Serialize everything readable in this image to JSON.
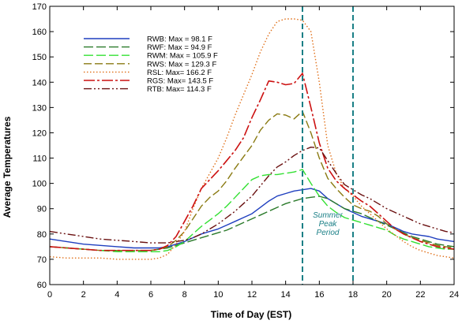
{
  "chart_data": {
    "type": "line",
    "xlabel": "Time of Day (EST)",
    "ylabel": "Average Temperatures",
    "xlim": [
      0,
      24
    ],
    "ylim": [
      60,
      170
    ],
    "xticks": [
      0,
      2,
      4,
      6,
      8,
      10,
      12,
      14,
      16,
      18,
      20,
      22,
      24
    ],
    "xtick_labels": [
      "0",
      "2",
      "4",
      "6",
      "8",
      "10",
      "12",
      "14",
      "16",
      "18",
      "20",
      "22",
      "24"
    ],
    "yticks": [
      60,
      70,
      80,
      90,
      100,
      110,
      120,
      130,
      140,
      150,
      160,
      170
    ],
    "ytick_labels": [
      "60",
      "70",
      "80",
      "90",
      "100",
      "110",
      "120",
      "130",
      "140",
      "150",
      "160",
      "170"
    ],
    "grid": false,
    "legend_position": "top-left",
    "x": [
      0,
      1,
      2,
      3,
      4,
      5,
      6,
      6.5,
      7,
      7.5,
      8,
      8.5,
      9,
      9.5,
      10,
      10.5,
      11,
      11.5,
      12,
      12.5,
      13,
      13.5,
      14,
      14.5,
      15,
      15.5,
      16,
      16.5,
      17,
      17.5,
      18,
      18.5,
      19,
      19.5,
      20,
      20.5,
      21,
      21.5,
      22,
      22.5,
      23,
      23.5,
      24
    ],
    "series": [
      {
        "name": "RWB: Max = 98.1 F",
        "color": "#1f3fbf",
        "dash": "",
        "width": 1.4,
        "values": [
          78,
          77,
          76,
          75.5,
          75,
          74.5,
          74.5,
          74.5,
          75,
          76,
          77,
          78.5,
          80,
          81,
          82,
          83.5,
          85,
          86.5,
          88,
          90.5,
          93,
          95,
          96,
          97,
          97.5,
          98,
          97,
          94,
          92,
          90,
          88.5,
          87,
          86,
          85,
          84,
          82.5,
          81,
          80,
          79.5,
          79,
          78,
          77.5,
          77
        ]
      },
      {
        "name": "RWF: Max = 94.9 F",
        "color": "#2a7a2a",
        "dash": "12 4",
        "width": 1.4,
        "values": [
          75,
          74.5,
          74,
          73.5,
          73.5,
          73.5,
          73.5,
          74,
          74.5,
          75.5,
          76.5,
          77.5,
          78.5,
          79.5,
          80.5,
          81.5,
          83,
          84.5,
          86,
          87.5,
          89,
          90.5,
          92,
          93,
          94,
          94.5,
          94.9,
          94,
          92,
          90,
          89,
          88,
          86.5,
          85,
          83.5,
          82,
          80.5,
          79,
          78,
          77,
          76,
          75.5,
          75
        ]
      },
      {
        "name": "RWM: Max = 105.9 F",
        "color": "#33e033",
        "dash": "12 4",
        "width": 1.4,
        "values": [
          75,
          74.5,
          74,
          73.5,
          73,
          73,
          73,
          73,
          73.5,
          75,
          77,
          80,
          83,
          85.5,
          88,
          91,
          94.5,
          98,
          101.5,
          103,
          103.5,
          103.5,
          104,
          104.5,
          105.5,
          100,
          95,
          91,
          88.5,
          86.5,
          85.5,
          84.5,
          83.5,
          82.5,
          81.5,
          79.5,
          78,
          77,
          76,
          75,
          74.5,
          74,
          74
        ]
      },
      {
        "name": "RWS: Max = 129.3 F",
        "color": "#8a7a12",
        "dash": "10 4",
        "width": 1.4,
        "values": [
          75,
          74.5,
          74,
          73.5,
          73.5,
          73.5,
          73.5,
          74,
          75,
          77.5,
          81,
          86,
          91,
          94.5,
          97,
          101,
          106,
          110.5,
          115,
          121,
          125,
          127.5,
          127,
          125.5,
          128.5,
          120,
          110,
          102,
          98,
          94.5,
          91.5,
          90,
          89,
          87,
          84,
          82,
          80,
          78.5,
          77.5,
          76.5,
          75.5,
          75,
          74.5
        ]
      },
      {
        "name": "RSL: Max= 166.2 F",
        "color": "#e0701a",
        "dash": "1.5 2.5",
        "width": 1.4,
        "values": [
          71,
          70.5,
          70.5,
          70.5,
          70,
          70,
          70,
          70.5,
          72,
          76,
          81,
          90,
          98,
          104,
          110,
          118,
          127,
          135,
          143,
          152,
          159,
          164,
          165,
          165,
          164.5,
          160,
          140,
          115,
          104,
          98,
          95,
          91,
          88,
          85,
          82,
          79.5,
          77,
          75,
          73.5,
          72.5,
          71.5,
          71,
          70.5
        ]
      },
      {
        "name": "RGS: Max= 143.5 F",
        "color": "#cc1111",
        "dash": "14 3 3 3",
        "width": 1.6,
        "values": [
          75,
          74.5,
          74,
          73.5,
          73.5,
          73.5,
          73.5,
          74,
          75.5,
          79,
          85,
          91,
          98,
          101.5,
          105,
          109,
          113,
          118,
          126,
          133,
          140.5,
          140,
          139,
          139.5,
          143.5,
          130,
          116,
          106,
          101,
          98,
          95.5,
          93,
          91,
          88,
          85,
          82,
          80,
          78.5,
          77,
          76,
          75,
          74.5,
          74
        ]
      },
      {
        "name": "RTB: Max= 114.3 F",
        "color": "#6a1010",
        "dash": "10 3 2 3 2 3",
        "width": 1.4,
        "values": [
          81,
          80,
          79,
          78,
          77.5,
          77,
          76.5,
          76.5,
          76.5,
          77,
          77.5,
          78.5,
          80,
          82,
          84,
          86.5,
          89,
          92,
          95,
          99,
          103,
          106.5,
          108.5,
          111,
          113,
          114.3,
          114,
          109,
          104,
          99.5,
          97.5,
          95.5,
          94,
          92,
          90,
          88.5,
          87,
          85.5,
          84,
          83,
          82,
          81,
          80.5
        ]
      }
    ],
    "vertical_lines": [
      {
        "x": 15,
        "color": "#1a7f86"
      },
      {
        "x": 18,
        "color": "#1a7f86"
      }
    ],
    "annotation": {
      "lines": [
        "Summer",
        "Peak",
        "Period"
      ],
      "x": 16.5,
      "y": 86.5,
      "color": "#1a7f86"
    }
  }
}
